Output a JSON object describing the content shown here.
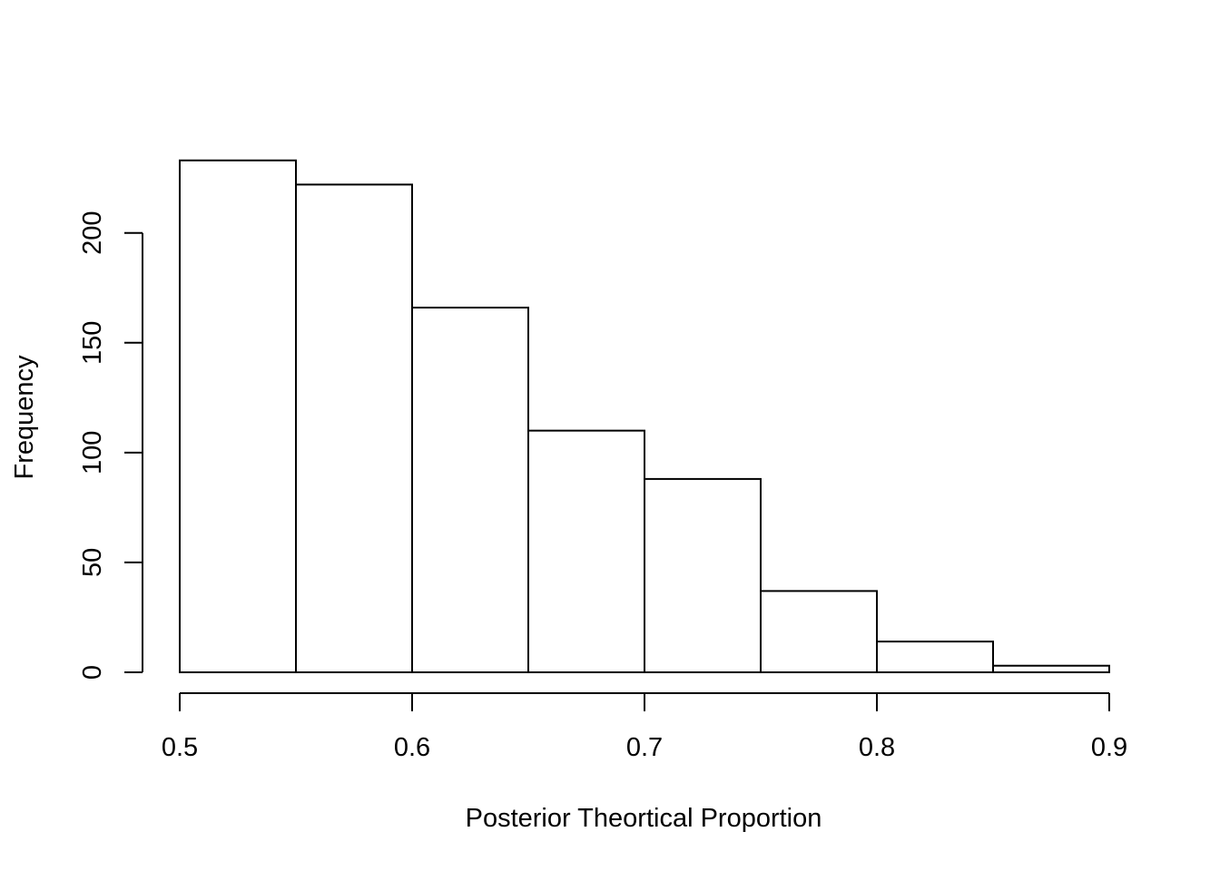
{
  "chart_data": {
    "type": "bar",
    "subtype": "histogram",
    "bins": [
      {
        "from": 0.5,
        "to": 0.55,
        "count": 233
      },
      {
        "from": 0.55,
        "to": 0.6,
        "count": 222
      },
      {
        "from": 0.6,
        "to": 0.65,
        "count": 166
      },
      {
        "from": 0.65,
        "to": 0.7,
        "count": 110
      },
      {
        "from": 0.7,
        "to": 0.75,
        "count": 88
      },
      {
        "from": 0.75,
        "to": 0.8,
        "count": 37
      },
      {
        "from": 0.8,
        "to": 0.85,
        "count": 14
      },
      {
        "from": 0.85,
        "to": 0.9,
        "count": 3
      }
    ],
    "xlabel": "Posterior Theortical Proportion",
    "ylabel": "Frequency",
    "xlim": [
      0.5,
      0.9
    ],
    "ylim": [
      0,
      233
    ],
    "xticks": [
      "0.5",
      "0.6",
      "0.7",
      "0.8",
      "0.9"
    ],
    "yticks": [
      "0",
      "50",
      "100",
      "150",
      "200"
    ],
    "grid": false,
    "colors": {
      "bar_fill": "#ffffff",
      "bar_stroke": "#000000"
    }
  }
}
